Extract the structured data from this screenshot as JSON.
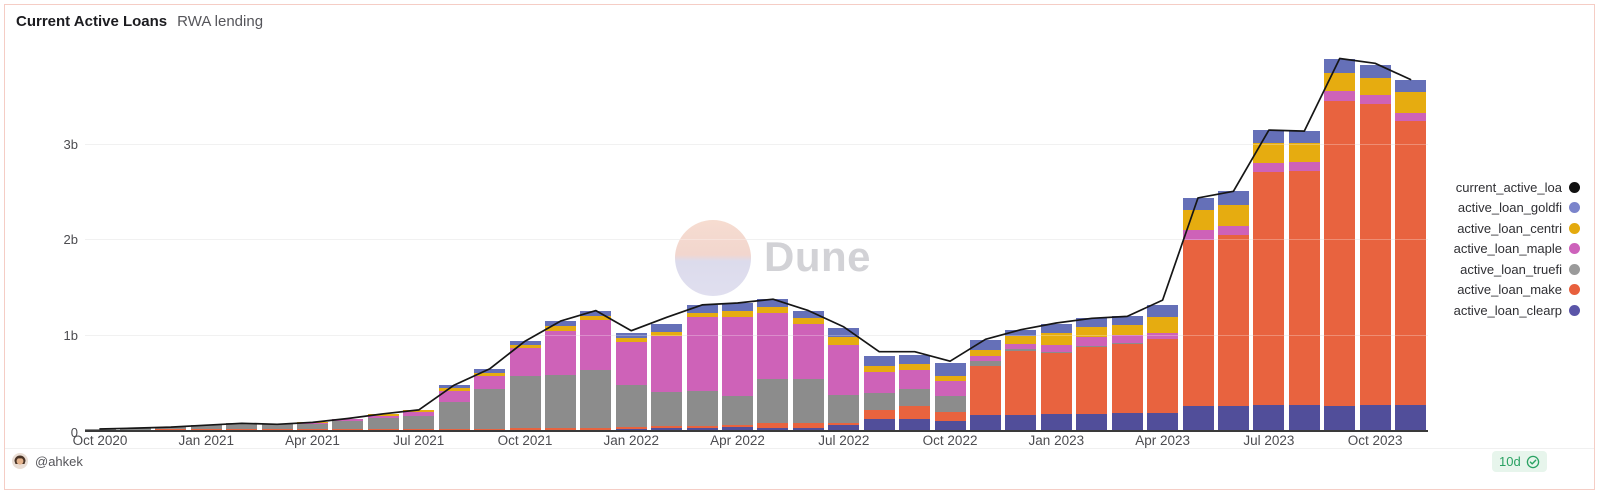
{
  "chart_data": {
    "type": "bar",
    "stacked": true,
    "title": "Current Active Loans",
    "subtitle": "RWA lending",
    "unit": "billions",
    "ylim": [
      0,
      4
    ],
    "grid": true,
    "legend_position": "right",
    "y_ticks": [
      {
        "value": 0,
        "label": "0"
      },
      {
        "value": 1,
        "label": "1b"
      },
      {
        "value": 2,
        "label": "2b"
      },
      {
        "value": 3,
        "label": "3b"
      }
    ],
    "x": [
      "Oct 2020",
      "Nov 2020",
      "Dec 2020",
      "Jan 2021",
      "Feb 2021",
      "Mar 2021",
      "Apr 2021",
      "May 2021",
      "Jun 2021",
      "Jul 2021",
      "Aug 2021",
      "Sep 2021",
      "Oct 2021",
      "Nov 2021",
      "Dec 2021",
      "Jan 2022",
      "Feb 2022",
      "Mar 2022",
      "Apr 2022",
      "May 2022",
      "Jun 2022",
      "Jul 2022",
      "Aug 2022",
      "Sep 2022",
      "Oct 2022",
      "Nov 2022",
      "Dec 2022",
      "Jan 2023",
      "Feb 2023",
      "Mar 2023",
      "Apr 2023",
      "May 2023",
      "Jun 2023",
      "Jul 2023",
      "Aug 2023",
      "Sep 2023",
      "Oct 2023",
      "Nov 2023"
    ],
    "x_tick_labels": [
      "Oct 2020",
      "Jan 2021",
      "Apr 2021",
      "Jul 2021",
      "Oct 2021",
      "Jan 2022",
      "Apr 2022",
      "Jul 2022",
      "Oct 2022",
      "Jan 2023",
      "Apr 2023",
      "Jul 2023",
      "Oct 2023"
    ],
    "series": [
      {
        "name": "active_loan_clearpool",
        "color": "#514e9a",
        "values": [
          0,
          0,
          0,
          0,
          0,
          0,
          0,
          0,
          0,
          0,
          0,
          0,
          0,
          0,
          0,
          0.01,
          0.02,
          0.02,
          0.03,
          0.02,
          0.02,
          0.05,
          0.12,
          0.12,
          0.09,
          0.16,
          0.16,
          0.17,
          0.17,
          0.18,
          0.18,
          0.25,
          0.25,
          0.26,
          0.26,
          0.25,
          0.26,
          0.26
        ]
      },
      {
        "name": "active_loan_maker",
        "color": "#e8633f",
        "values": [
          0,
          0,
          0.01,
          0.01,
          0.01,
          0.01,
          0.01,
          0.01,
          0.01,
          0.01,
          0.01,
          0.01,
          0.02,
          0.02,
          0.02,
          0.02,
          0.02,
          0.02,
          0.02,
          0.05,
          0.05,
          0.02,
          0.09,
          0.13,
          0.1,
          0.51,
          0.67,
          0.64,
          0.7,
          0.72,
          0.77,
          1.74,
          1.79,
          2.44,
          2.45,
          3.19,
          3.15,
          2.98
        ]
      },
      {
        "name": "active_loan_truefi",
        "color": "#8c8c8c",
        "values": [
          0.01,
          0.02,
          0.02,
          0.04,
          0.06,
          0.05,
          0.05,
          0.08,
          0.12,
          0.14,
          0.28,
          0.42,
          0.55,
          0.56,
          0.61,
          0.44,
          0.36,
          0.37,
          0.31,
          0.46,
          0.46,
          0.3,
          0.18,
          0.18,
          0.17,
          0.05,
          0.02,
          0.01,
          0.01,
          0.01,
          0,
          0,
          0,
          0,
          0,
          0,
          0,
          0
        ]
      },
      {
        "name": "active_loan_maple",
        "color": "#ce62b8",
        "values": [
          0,
          0,
          0,
          0,
          0,
          0,
          0.01,
          0.02,
          0.02,
          0.04,
          0.12,
          0.14,
          0.29,
          0.46,
          0.52,
          0.45,
          0.58,
          0.77,
          0.82,
          0.7,
          0.58,
          0.52,
          0.22,
          0.2,
          0.15,
          0.05,
          0.05,
          0.07,
          0.09,
          0.08,
          0.07,
          0.1,
          0.1,
          0.1,
          0.1,
          0.11,
          0.1,
          0.08
        ]
      },
      {
        "name": "active_loan_centrifuge",
        "color": "#e6ac10",
        "values": [
          0,
          0,
          0,
          0,
          0,
          0,
          0.01,
          0.01,
          0.02,
          0.02,
          0.03,
          0.03,
          0.03,
          0.05,
          0.04,
          0.04,
          0.05,
          0.05,
          0.07,
          0.06,
          0.06,
          0.08,
          0.06,
          0.06,
          0.06,
          0.07,
          0.08,
          0.13,
          0.11,
          0.11,
          0.16,
          0.21,
          0.22,
          0.21,
          0.2,
          0.19,
          0.18,
          0.22
        ]
      },
      {
        "name": "active_loan_goldfinch",
        "color": "#6570b8",
        "values": [
          0,
          0,
          0,
          0,
          0,
          0,
          0,
          0,
          0,
          0,
          0.03,
          0.04,
          0.04,
          0.05,
          0.06,
          0.06,
          0.08,
          0.08,
          0.08,
          0.08,
          0.08,
          0.1,
          0.1,
          0.1,
          0.13,
          0.1,
          0.07,
          0.09,
          0.09,
          0.09,
          0.13,
          0.13,
          0.14,
          0.13,
          0.12,
          0.14,
          0.13,
          0.13
        ]
      }
    ],
    "line_series": {
      "name": "current_active_loans",
      "color": "#161616",
      "values": [
        0.01,
        0.02,
        0.03,
        0.05,
        0.07,
        0.06,
        0.08,
        0.12,
        0.17,
        0.21,
        0.47,
        0.64,
        0.93,
        1.14,
        1.25,
        1.04,
        1.18,
        1.31,
        1.33,
        1.37,
        1.25,
        1.08,
        0.82,
        0.82,
        0.72,
        0.95,
        1.05,
        1.12,
        1.17,
        1.19,
        1.36,
        2.43,
        2.5,
        3.14,
        3.13,
        3.89,
        3.84,
        3.67
      ]
    }
  },
  "legend": [
    {
      "label": "current_active_loa",
      "color": "#111111"
    },
    {
      "label": "active_loan_goldfi",
      "color": "#7b84cb"
    },
    {
      "label": "active_loan_centri",
      "color": "#e4aa0e"
    },
    {
      "label": "active_loan_maple",
      "color": "#cd62bb"
    },
    {
      "label": "active_loan_truefi",
      "color": "#9a9a9a"
    },
    {
      "label": "active_loan_make",
      "color": "#e8603d"
    },
    {
      "label": "active_loan_clearp",
      "color": "#5a55a8"
    }
  ],
  "watermark": {
    "text": "Dune"
  },
  "footer": {
    "author": "@ahkek",
    "badge": "10d"
  }
}
